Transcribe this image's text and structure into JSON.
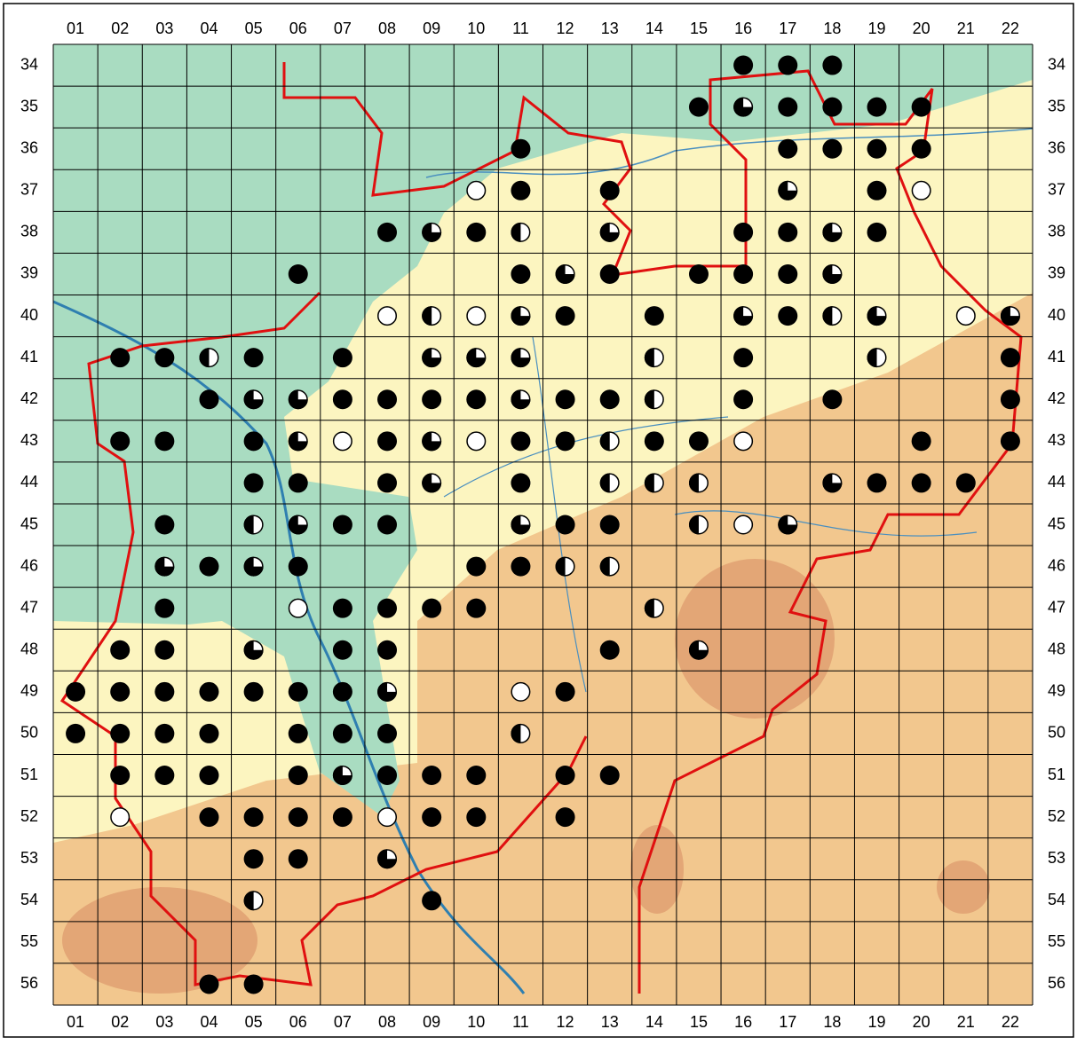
{
  "map": {
    "columns": [
      "01",
      "02",
      "03",
      "04",
      "05",
      "06",
      "07",
      "08",
      "09",
      "10",
      "11",
      "12",
      "13",
      "14",
      "15",
      "16",
      "17",
      "18",
      "19",
      "20",
      "21",
      "22"
    ],
    "rows": [
      "34",
      "35",
      "36",
      "37",
      "38",
      "39",
      "40",
      "41",
      "42",
      "43",
      "44",
      "45",
      "46",
      "47",
      "48",
      "49",
      "50",
      "51",
      "52",
      "53",
      "54",
      "55",
      "56"
    ],
    "records": [
      [
        "16",
        "34",
        "full"
      ],
      [
        "17",
        "34",
        "full"
      ],
      [
        "18",
        "34",
        "full"
      ],
      [
        "15",
        "35",
        "full"
      ],
      [
        "16",
        "35",
        "three-quarter"
      ],
      [
        "17",
        "35",
        "full"
      ],
      [
        "18",
        "35",
        "full"
      ],
      [
        "19",
        "35",
        "full"
      ],
      [
        "20",
        "35",
        "full"
      ],
      [
        "11",
        "36",
        "full"
      ],
      [
        "17",
        "36",
        "full"
      ],
      [
        "18",
        "36",
        "full"
      ],
      [
        "19",
        "36",
        "full"
      ],
      [
        "20",
        "36",
        "full"
      ],
      [
        "10",
        "37",
        "open"
      ],
      [
        "11",
        "37",
        "full"
      ],
      [
        "13",
        "37",
        "full"
      ],
      [
        "17",
        "37",
        "three-quarter"
      ],
      [
        "19",
        "37",
        "full"
      ],
      [
        "20",
        "37",
        "open"
      ],
      [
        "08",
        "38",
        "full"
      ],
      [
        "09",
        "38",
        "three-quarter"
      ],
      [
        "10",
        "38",
        "full"
      ],
      [
        "11",
        "38",
        "half"
      ],
      [
        "13",
        "38",
        "three-quarter"
      ],
      [
        "16",
        "38",
        "full"
      ],
      [
        "17",
        "38",
        "full"
      ],
      [
        "18",
        "38",
        "three-quarter"
      ],
      [
        "19",
        "38",
        "full"
      ],
      [
        "06",
        "39",
        "full"
      ],
      [
        "11",
        "39",
        "full"
      ],
      [
        "12",
        "39",
        "three-quarter"
      ],
      [
        "13",
        "39",
        "full"
      ],
      [
        "15",
        "39",
        "full"
      ],
      [
        "16",
        "39",
        "full"
      ],
      [
        "17",
        "39",
        "full"
      ],
      [
        "18",
        "39",
        "three-quarter"
      ],
      [
        "08",
        "40",
        "open"
      ],
      [
        "09",
        "40",
        "half"
      ],
      [
        "10",
        "40",
        "open"
      ],
      [
        "11",
        "40",
        "three-quarter"
      ],
      [
        "12",
        "40",
        "full"
      ],
      [
        "14",
        "40",
        "full"
      ],
      [
        "16",
        "40",
        "three-quarter"
      ],
      [
        "17",
        "40",
        "full"
      ],
      [
        "18",
        "40",
        "half"
      ],
      [
        "19",
        "40",
        "three-quarter"
      ],
      [
        "21",
        "40",
        "open"
      ],
      [
        "22",
        "40",
        "three-quarter"
      ],
      [
        "02",
        "41",
        "full"
      ],
      [
        "03",
        "41",
        "full"
      ],
      [
        "04",
        "41",
        "half"
      ],
      [
        "05",
        "41",
        "full"
      ],
      [
        "07",
        "41",
        "full"
      ],
      [
        "09",
        "41",
        "three-quarter"
      ],
      [
        "10",
        "41",
        "three-quarter"
      ],
      [
        "11",
        "41",
        "three-quarter"
      ],
      [
        "14",
        "41",
        "half"
      ],
      [
        "16",
        "41",
        "full"
      ],
      [
        "19",
        "41",
        "half"
      ],
      [
        "22",
        "41",
        "full"
      ],
      [
        "04",
        "42",
        "full"
      ],
      [
        "05",
        "42",
        "three-quarter"
      ],
      [
        "06",
        "42",
        "three-quarter"
      ],
      [
        "07",
        "42",
        "full"
      ],
      [
        "08",
        "42",
        "full"
      ],
      [
        "09",
        "42",
        "full"
      ],
      [
        "10",
        "42",
        "full"
      ],
      [
        "11",
        "42",
        "three-quarter"
      ],
      [
        "12",
        "42",
        "full"
      ],
      [
        "13",
        "42",
        "full"
      ],
      [
        "14",
        "42",
        "half"
      ],
      [
        "16",
        "42",
        "full"
      ],
      [
        "18",
        "42",
        "full"
      ],
      [
        "22",
        "42",
        "full"
      ],
      [
        "02",
        "43",
        "full"
      ],
      [
        "03",
        "43",
        "full"
      ],
      [
        "05",
        "43",
        "full"
      ],
      [
        "06",
        "43",
        "three-quarter"
      ],
      [
        "07",
        "43",
        "open"
      ],
      [
        "08",
        "43",
        "full"
      ],
      [
        "09",
        "43",
        "three-quarter"
      ],
      [
        "10",
        "43",
        "open"
      ],
      [
        "11",
        "43",
        "full"
      ],
      [
        "12",
        "43",
        "full"
      ],
      [
        "13",
        "43",
        "half"
      ],
      [
        "14",
        "43",
        "full"
      ],
      [
        "15",
        "43",
        "full"
      ],
      [
        "16",
        "43",
        "open"
      ],
      [
        "20",
        "43",
        "full"
      ],
      [
        "22",
        "43",
        "full"
      ],
      [
        "05",
        "44",
        "full"
      ],
      [
        "06",
        "44",
        "full"
      ],
      [
        "08",
        "44",
        "full"
      ],
      [
        "09",
        "44",
        "three-quarter"
      ],
      [
        "11",
        "44",
        "full"
      ],
      [
        "13",
        "44",
        "half"
      ],
      [
        "14",
        "44",
        "half"
      ],
      [
        "15",
        "44",
        "half"
      ],
      [
        "18",
        "44",
        "three-quarter"
      ],
      [
        "19",
        "44",
        "full"
      ],
      [
        "20",
        "44",
        "full"
      ],
      [
        "21",
        "44",
        "full"
      ],
      [
        "03",
        "45",
        "full"
      ],
      [
        "05",
        "45",
        "half"
      ],
      [
        "06",
        "45",
        "three-quarter"
      ],
      [
        "07",
        "45",
        "full"
      ],
      [
        "08",
        "45",
        "full"
      ],
      [
        "11",
        "45",
        "three-quarter"
      ],
      [
        "12",
        "45",
        "full"
      ],
      [
        "13",
        "45",
        "full"
      ],
      [
        "15",
        "45",
        "half"
      ],
      [
        "16",
        "45",
        "open"
      ],
      [
        "17",
        "45",
        "three-quarter"
      ],
      [
        "03",
        "46",
        "three-quarter"
      ],
      [
        "04",
        "46",
        "full"
      ],
      [
        "05",
        "46",
        "three-quarter"
      ],
      [
        "06",
        "46",
        "full"
      ],
      [
        "10",
        "46",
        "full"
      ],
      [
        "11",
        "46",
        "full"
      ],
      [
        "12",
        "46",
        "half"
      ],
      [
        "13",
        "46",
        "half"
      ],
      [
        "03",
        "47",
        "full"
      ],
      [
        "06",
        "47",
        "open"
      ],
      [
        "07",
        "47",
        "full"
      ],
      [
        "08",
        "47",
        "full"
      ],
      [
        "09",
        "47",
        "full"
      ],
      [
        "10",
        "47",
        "full"
      ],
      [
        "14",
        "47",
        "half"
      ],
      [
        "02",
        "48",
        "full"
      ],
      [
        "03",
        "48",
        "full"
      ],
      [
        "05",
        "48",
        "three-quarter"
      ],
      [
        "07",
        "48",
        "full"
      ],
      [
        "08",
        "48",
        "full"
      ],
      [
        "13",
        "48",
        "full"
      ],
      [
        "15",
        "48",
        "three-quarter"
      ],
      [
        "01",
        "49",
        "full"
      ],
      [
        "02",
        "49",
        "full"
      ],
      [
        "03",
        "49",
        "full"
      ],
      [
        "04",
        "49",
        "full"
      ],
      [
        "05",
        "49",
        "full"
      ],
      [
        "06",
        "49",
        "full"
      ],
      [
        "07",
        "49",
        "full"
      ],
      [
        "08",
        "49",
        "three-quarter"
      ],
      [
        "11",
        "49",
        "open"
      ],
      [
        "12",
        "49",
        "full"
      ],
      [
        "01",
        "50",
        "full"
      ],
      [
        "02",
        "50",
        "full"
      ],
      [
        "03",
        "50",
        "full"
      ],
      [
        "04",
        "50",
        "full"
      ],
      [
        "06",
        "50",
        "full"
      ],
      [
        "07",
        "50",
        "full"
      ],
      [
        "08",
        "50",
        "full"
      ],
      [
        "11",
        "50",
        "half"
      ],
      [
        "02",
        "51",
        "full"
      ],
      [
        "03",
        "51",
        "full"
      ],
      [
        "04",
        "51",
        "full"
      ],
      [
        "06",
        "51",
        "full"
      ],
      [
        "07",
        "51",
        "three-quarter"
      ],
      [
        "08",
        "51",
        "full"
      ],
      [
        "09",
        "51",
        "full"
      ],
      [
        "10",
        "51",
        "full"
      ],
      [
        "12",
        "51",
        "full"
      ],
      [
        "13",
        "51",
        "full"
      ],
      [
        "02",
        "52",
        "open"
      ],
      [
        "04",
        "52",
        "full"
      ],
      [
        "05",
        "52",
        "full"
      ],
      [
        "06",
        "52",
        "full"
      ],
      [
        "07",
        "52",
        "full"
      ],
      [
        "08",
        "52",
        "open"
      ],
      [
        "09",
        "52",
        "full"
      ],
      [
        "10",
        "52",
        "full"
      ],
      [
        "12",
        "52",
        "full"
      ],
      [
        "05",
        "53",
        "full"
      ],
      [
        "06",
        "53",
        "full"
      ],
      [
        "08",
        "53",
        "three-quarter"
      ],
      [
        "05",
        "54",
        "half"
      ],
      [
        "09",
        "54",
        "full"
      ],
      [
        "04",
        "56",
        "full"
      ],
      [
        "05",
        "56",
        "full"
      ]
    ]
  }
}
